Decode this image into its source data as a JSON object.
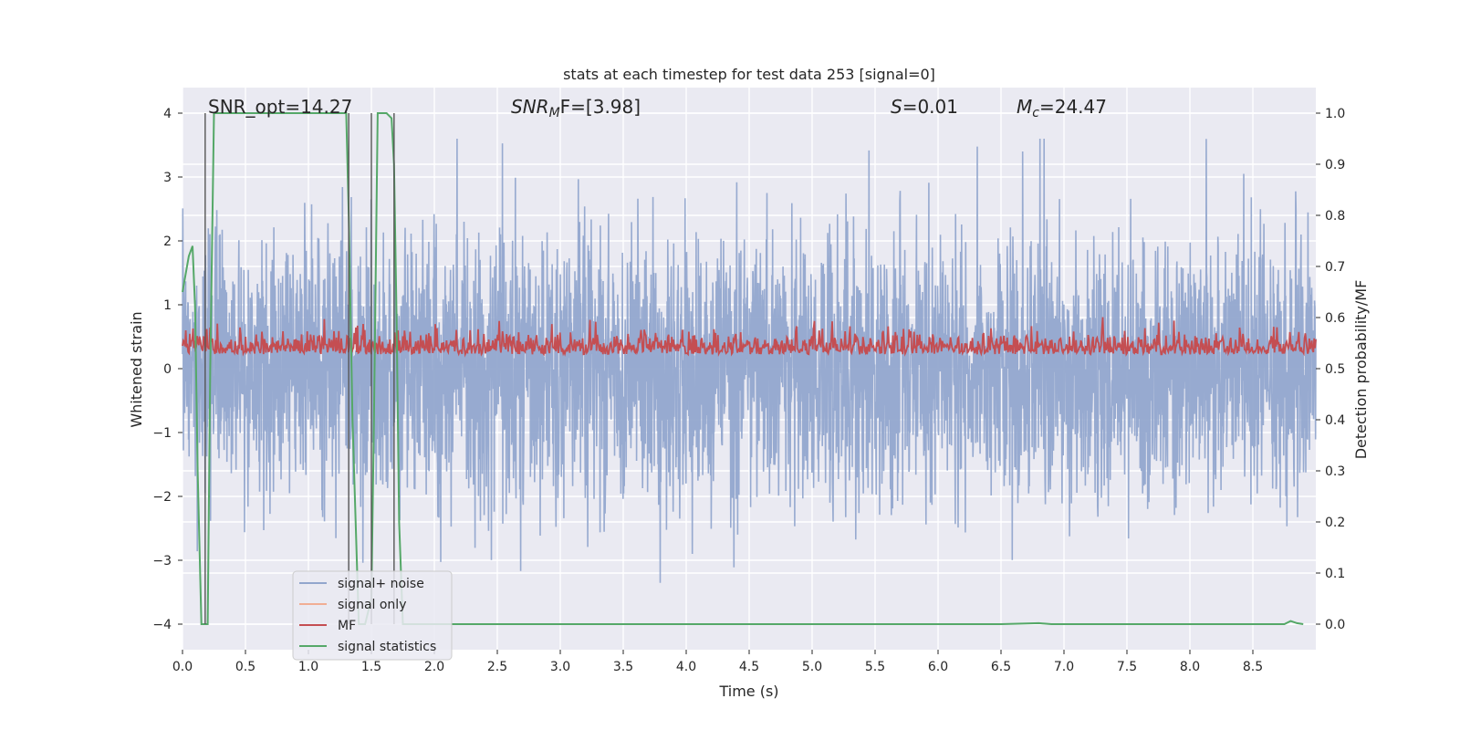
{
  "chart_data": {
    "type": "line",
    "title": "stats at each timestep for test data 253 [signal=0]",
    "xlabel": "Time (s)",
    "ylabel_left": "Whitened strain",
    "ylabel_right": "Detection probability/MF",
    "xlim": [
      0.0,
      9.0
    ],
    "ylim_left": [
      -4.4,
      4.4
    ],
    "ylim_right": [
      -0.05,
      1.05
    ],
    "x_ticks": [
      "0.0",
      "0.5",
      "1.0",
      "1.5",
      "2.0",
      "2.5",
      "3.0",
      "3.5",
      "4.0",
      "4.5",
      "5.0",
      "5.5",
      "6.0",
      "6.5",
      "7.0",
      "7.5",
      "8.0",
      "8.5"
    ],
    "x_tick_values": [
      0.0,
      0.5,
      1.0,
      1.5,
      2.0,
      2.5,
      3.0,
      3.5,
      4.0,
      4.5,
      5.0,
      5.5,
      6.0,
      6.5,
      7.0,
      7.5,
      8.0,
      8.5
    ],
    "y_ticks_left": [
      "4",
      "3",
      "2",
      "1",
      "0",
      "−1",
      "−2",
      "−3",
      "−4"
    ],
    "y_tick_values_left": [
      4,
      3,
      2,
      1,
      0,
      -1,
      -2,
      -3,
      -4
    ],
    "y_ticks_right": [
      "1.0",
      "0.9",
      "0.8",
      "0.7",
      "0.6",
      "0.5",
      "0.4",
      "0.3",
      "0.2",
      "0.1",
      "0.0"
    ],
    "y_tick_values_right": [
      1.0,
      0.9,
      0.8,
      0.7,
      0.6,
      0.5,
      0.4,
      0.3,
      0.2,
      0.1,
      0.0
    ],
    "grid": true,
    "legend_position": "lower-left",
    "annotations": {
      "snr_opt": "SNR_opt=14.27",
      "snr_mf_base": "SNR",
      "snr_mf_sub": "M",
      "snr_mf_rest": "F=[3.98]",
      "s_var": "S",
      "s_rest": "=0.01",
      "mc_var": "M",
      "mc_sub": "c",
      "mc_rest": "=24.47"
    },
    "series": [
      {
        "name": "signal+ noise",
        "color": "#92a6cd",
        "axis": "left",
        "envelope_max": 3.6,
        "envelope_min": -3.9
      },
      {
        "name": "signal only",
        "color": "#f1ae94",
        "axis": "left",
        "values": []
      },
      {
        "name": "MF",
        "color": "#c44e52",
        "axis": "right",
        "range": [
          0.5,
          0.62
        ]
      },
      {
        "name": "signal statistics",
        "color": "#55a868",
        "axis": "right",
        "x": [
          0.0,
          0.05,
          0.08,
          0.1,
          0.12,
          0.15,
          0.18,
          0.2,
          0.22,
          0.25,
          0.3,
          0.5,
          1.0,
          1.2,
          1.3,
          1.32,
          1.35,
          1.4,
          1.45,
          1.5,
          1.52,
          1.55,
          1.58,
          1.62,
          1.66,
          1.68,
          1.7,
          1.72,
          1.75,
          1.8,
          2.0,
          4.0,
          6.5,
          6.8,
          6.9,
          8.5,
          8.75,
          8.8,
          8.85,
          8.9
        ],
        "values": [
          0.65,
          0.72,
          0.74,
          0.62,
          0.3,
          0.0,
          0.0,
          0.0,
          0.5,
          1.0,
          1.0,
          1.0,
          1.0,
          1.0,
          1.0,
          0.8,
          0.4,
          0.0,
          0.0,
          0.05,
          0.4,
          1.0,
          1.0,
          1.0,
          0.99,
          0.9,
          0.6,
          0.2,
          0.0,
          0.0,
          0.0,
          0.0,
          0.0,
          0.002,
          0.0,
          0.0,
          0.0,
          0.006,
          0.002,
          0.0
        ]
      }
    ],
    "vertical_markers": [
      0.18,
      1.32,
      1.5,
      1.68
    ]
  }
}
